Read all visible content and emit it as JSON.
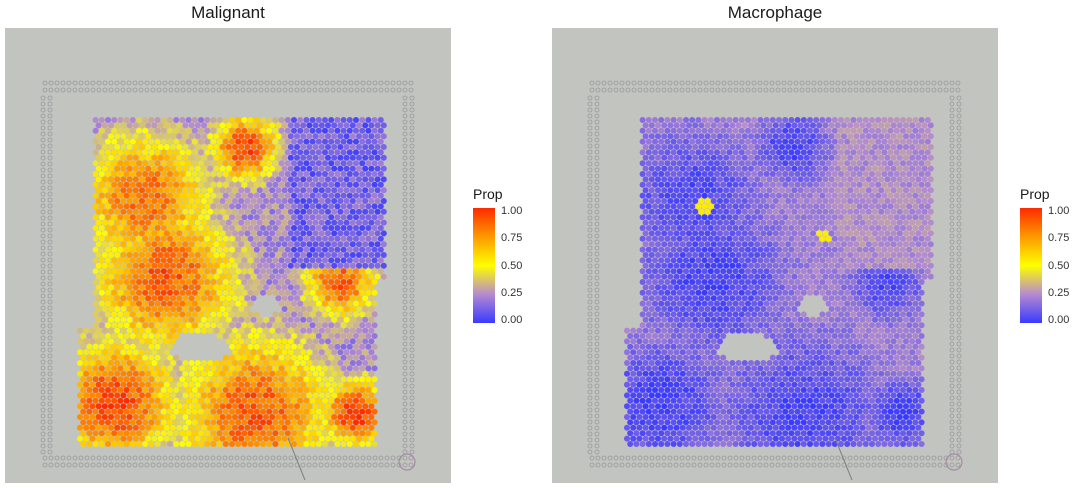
{
  "chart_data": [
    {
      "type": "heatmap",
      "title": "Malignant",
      "legend": {
        "title": "Prop",
        "ticks": [
          "1.00",
          "0.75",
          "0.50",
          "0.25",
          "0.00"
        ],
        "range": [
          0,
          1
        ],
        "placement": "right"
      },
      "colors": {
        "low": "#3a3aff",
        "mid": "#ffff00",
        "high": "#ff2a00"
      }
    },
    {
      "type": "heatmap",
      "title": "Macrophage",
      "legend": {
        "title": "Prop",
        "ticks": [
          "1.00",
          "0.75",
          "0.50",
          "0.25",
          "0.00"
        ],
        "range": [
          0,
          1
        ],
        "placement": "right"
      },
      "colors": {
        "low": "#3a3aff",
        "mid": "#ffff00",
        "high": "#ff2a00"
      }
    }
  ]
}
